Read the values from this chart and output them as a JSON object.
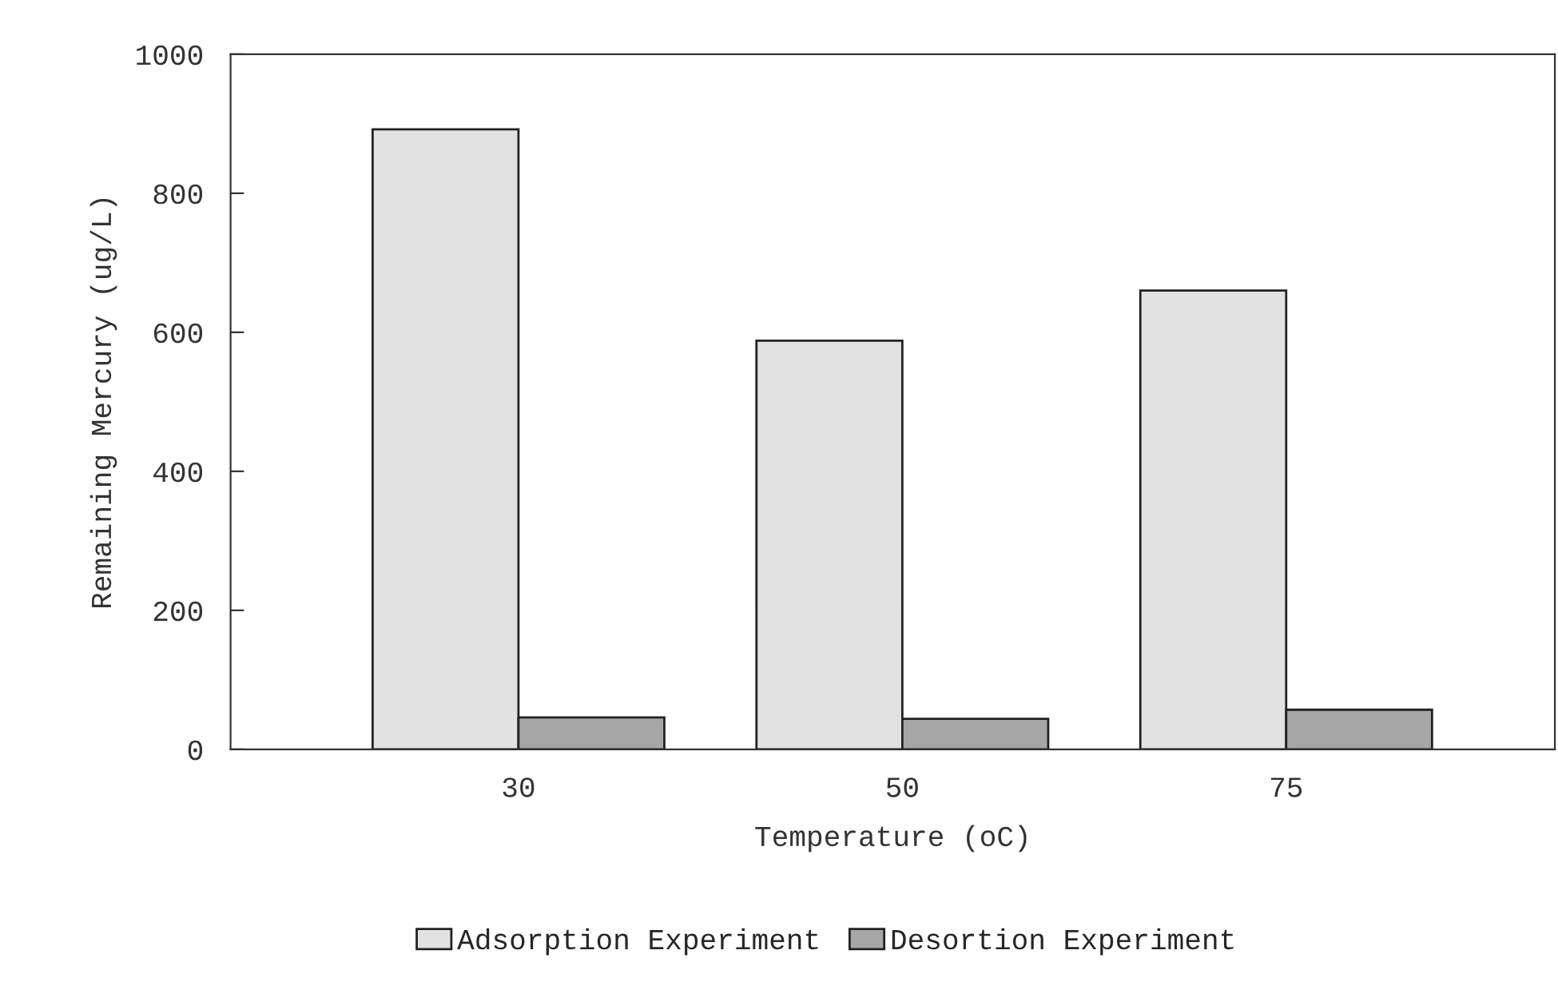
{
  "chart_data": {
    "type": "bar",
    "xlabel": "Temperature (oC)",
    "ylabel": "Remaining Mercury (ug/L)",
    "categories": [
      "30",
      "50",
      "75"
    ],
    "series": [
      {
        "name": "Adsorption Experiment",
        "color": "#e2e2e2",
        "values": [
          892,
          588,
          660
        ]
      },
      {
        "name": "Desortion Experiment",
        "color": "#a6a6a6",
        "values": [
          46,
          44,
          57
        ]
      }
    ],
    "ylim": [
      0,
      1000
    ],
    "yticks": [
      0,
      200,
      400,
      600,
      800,
      1000
    ],
    "grid": false,
    "legend": "bottom"
  }
}
